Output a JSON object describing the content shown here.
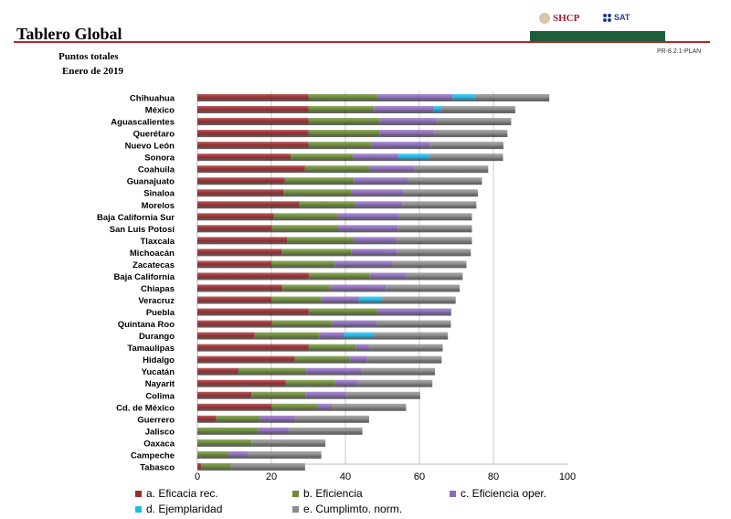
{
  "header": {
    "title": "Tablero Global",
    "doc_code": "PR-8.2.1-PLAN",
    "logos": [
      "SHCP",
      "SAT"
    ]
  },
  "chart_data": {
    "type": "bar",
    "orientation": "horizontal",
    "stacked": true,
    "title": "Puntos totales",
    "subtitle": "Enero de 2019",
    "xlim": [
      0,
      100
    ],
    "xticks": [
      0,
      20,
      40,
      60,
      80,
      100
    ],
    "grid": true,
    "legend_position": "bottom",
    "categories": [
      "Chihuahua",
      "México",
      "Aguascalientes",
      "Querétaro",
      "Nuevo León",
      "Sonora",
      "Coahuila",
      "Guanajuato",
      "Sinaloa",
      "Morelos",
      "Baja California Sur",
      "San Luis Potosí",
      "Tlaxcala",
      "Michoacán",
      "Zacatecas",
      "Baja California",
      "Chiapas",
      "Veracruz",
      "Puebla",
      "Quintana Roo",
      "Durango",
      "Tamaulipas",
      "Hidalgo",
      "Yucatán",
      "Nayarit",
      "Colima",
      "Cd. de México",
      "Guerrero",
      "Jalisco",
      "Oaxaca",
      "Campeche",
      "Tabasco"
    ],
    "series": [
      {
        "name": "a. Eficacia rec.",
        "color": "#9b2d30",
        "values": [
          30,
          30,
          30,
          30,
          30,
          25.2,
          29.1,
          23.6,
          23.3,
          27.6,
          20.7,
          20.2,
          24.3,
          22.8,
          20,
          30.1,
          23,
          20,
          30.1,
          20.2,
          15.5,
          30.1,
          26.3,
          11.1,
          23.9,
          14.6,
          20,
          5.1,
          0,
          0,
          0,
          1
        ]
      },
      {
        "name": "b. Eficiencia",
        "color": "#6b8c35",
        "values": [
          18.8,
          17.7,
          19.3,
          19.2,
          16.9,
          16.8,
          17.5,
          18.7,
          18.4,
          15.1,
          17.3,
          17.7,
          17.8,
          18.7,
          17.1,
          16.5,
          13,
          13.5,
          18.6,
          16.2,
          17.5,
          12.8,
          14.9,
          18.3,
          13.3,
          14.7,
          12.6,
          11.8,
          16.5,
          14.6,
          8.4,
          8.1
        ]
      },
      {
        "name": "c. Eficiencia oper.",
        "color": "#8d6bbd",
        "values": [
          20.1,
          16.1,
          15.3,
          14.6,
          15.9,
          12.3,
          12,
          14.5,
          14,
          12.7,
          16.3,
          16.2,
          11.9,
          12.4,
          15.6,
          9.9,
          14.9,
          10.1,
          19.9,
          12.1,
          6.6,
          3.4,
          4.8,
          14.8,
          6.2,
          10.9,
          3.7,
          9.5,
          8.1,
          0,
          5.2,
          0
        ]
      },
      {
        "name": "d. Ejemplaridad",
        "color": "#1db9ea",
        "values": [
          6.1,
          2.1,
          0,
          0,
          0,
          8.3,
          0,
          0,
          0,
          0,
          0,
          0,
          0,
          0,
          0,
          0,
          0,
          6.3,
          0,
          0,
          8.1,
          0,
          0,
          0,
          0,
          0,
          0,
          0,
          0,
          0,
          0,
          0
        ]
      },
      {
        "name": "e. Cumplimto. norm.",
        "color": "#8c8c8c",
        "values": [
          20.1,
          20,
          20.2,
          20,
          19.9,
          20,
          20,
          20.1,
          20.1,
          20,
          19.9,
          20.1,
          20.2,
          20,
          20,
          15.2,
          20,
          19.9,
          0,
          20,
          20,
          20,
          20,
          20,
          20.1,
          20,
          20.1,
          20,
          20,
          20,
          19.9,
          20
        ]
      }
    ]
  }
}
